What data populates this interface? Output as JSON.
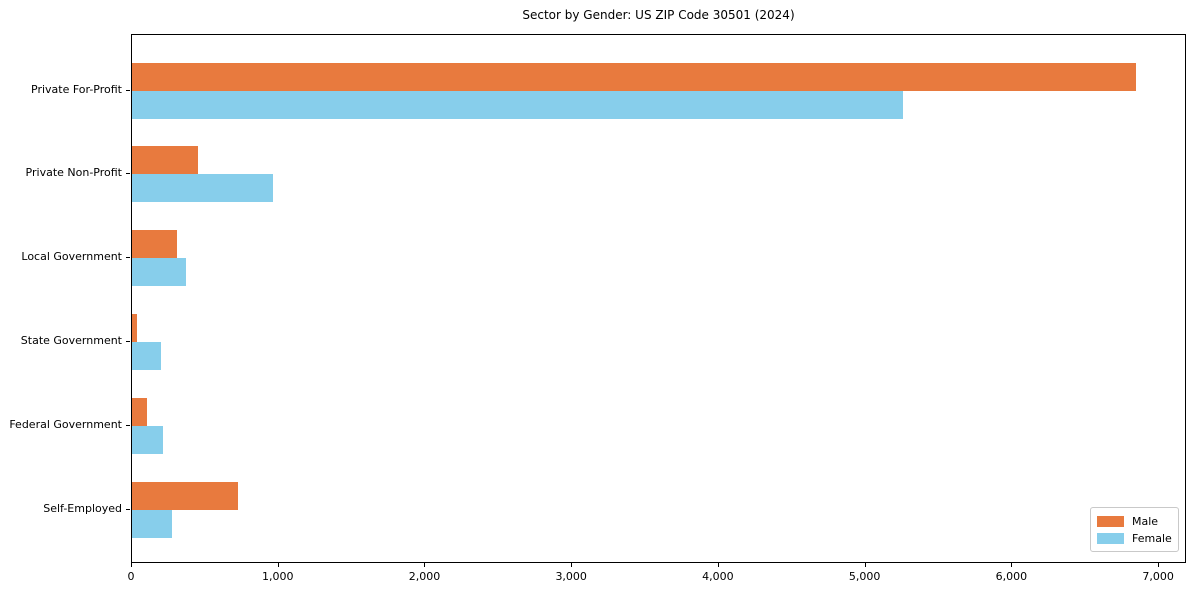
{
  "chart_data": {
    "type": "bar",
    "orientation": "horizontal",
    "title": "Sector by Gender: US ZIP Code 30501 (2024)",
    "categories": [
      "Private For-Profit",
      "Private Non-Profit",
      "Local Government",
      "State Government",
      "Federal Government",
      "Self-Employed"
    ],
    "series": [
      {
        "name": "Male",
        "color": "#e87a3e",
        "values": [
          6840,
          450,
          307,
          32,
          100,
          725
        ]
      },
      {
        "name": "Female",
        "color": "#87ceeb",
        "values": [
          5255,
          960,
          370,
          198,
          210,
          270
        ]
      }
    ],
    "xlabel": "",
    "ylabel": "",
    "xlim": [
      0,
      7190
    ],
    "xticks": [
      0,
      1000,
      2000,
      3000,
      4000,
      5000,
      6000,
      7000
    ],
    "xtick_labels": [
      "0",
      "1,000",
      "2,000",
      "3,000",
      "4,000",
      "5,000",
      "6,000",
      "7,000"
    ],
    "grid": false,
    "legend_position": "lower right",
    "frame": "full-box",
    "colors": {
      "axis": "#000000",
      "text": "#000000",
      "legend_border": "#c9c9c9",
      "background": "#ffffff"
    }
  }
}
